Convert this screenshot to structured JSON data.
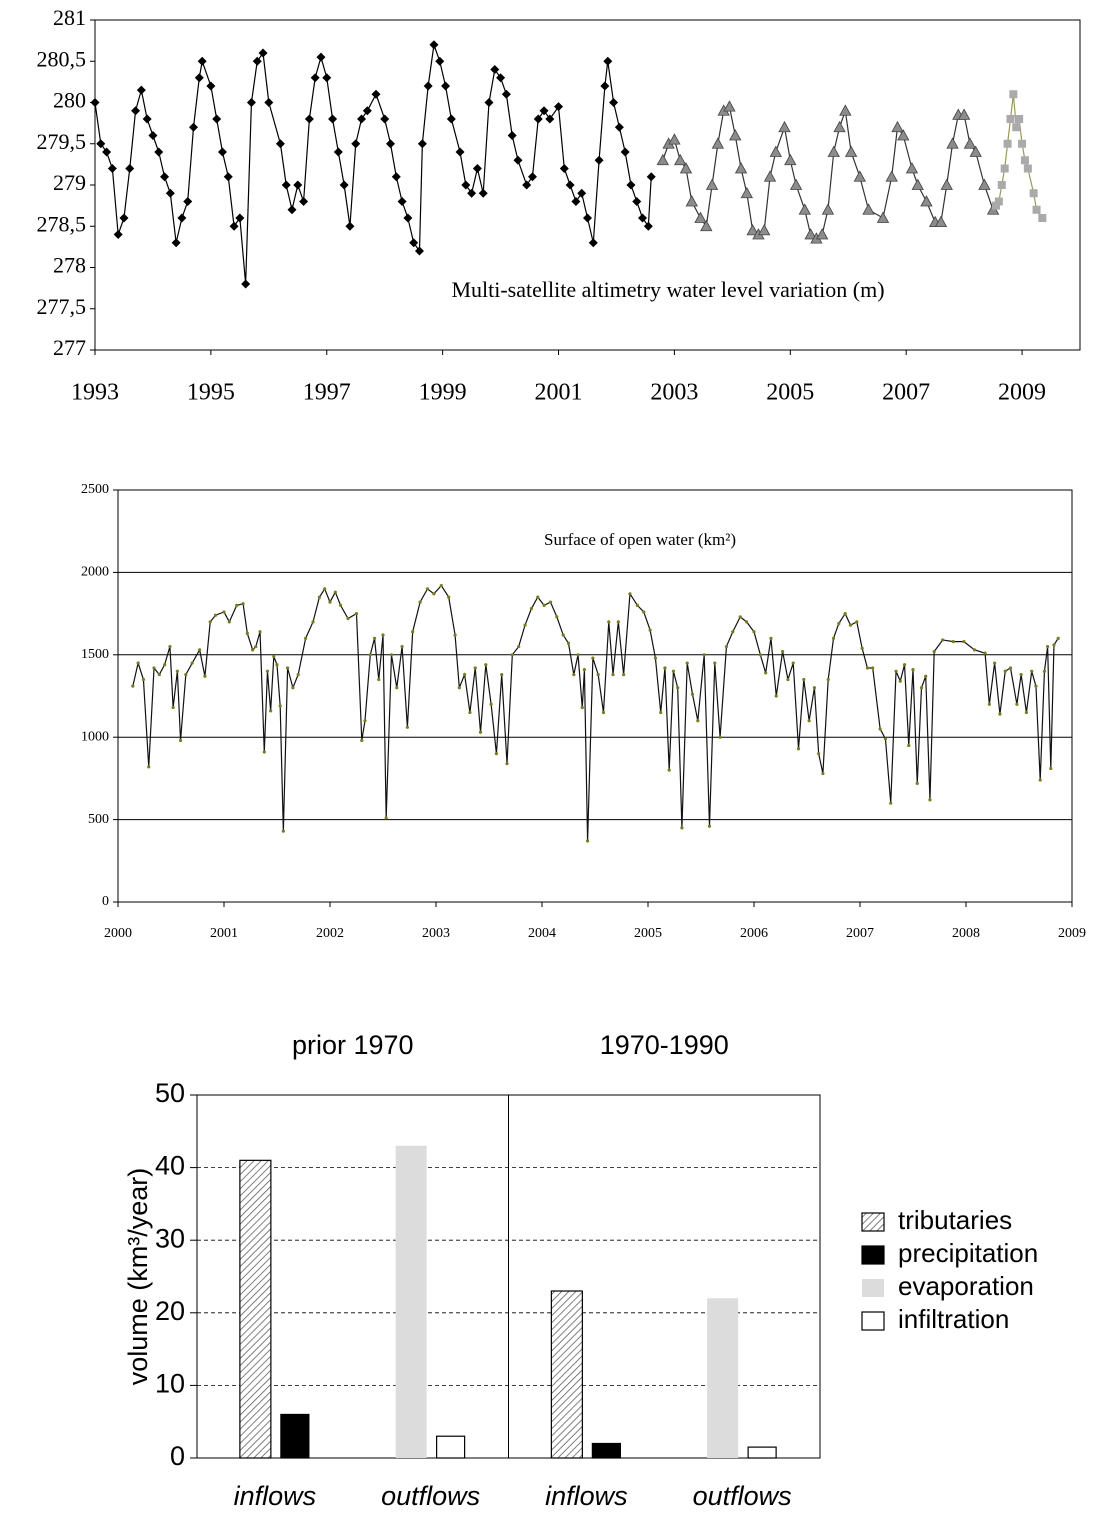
{
  "chart_data": [
    {
      "type": "line",
      "title": "Multi-satellite altimetry water level variation (m)",
      "xlim": [
        1993,
        2010
      ],
      "xticks": [
        1993,
        1995,
        1997,
        1999,
        2001,
        2003,
        2005,
        2007,
        2009
      ],
      "ylim": [
        277,
        281
      ],
      "yticks": [
        277,
        {
          "value": 277.5,
          "label": "277,5"
        },
        278,
        {
          "value": 278.5,
          "label": "278,5"
        },
        279,
        {
          "value": 279.5,
          "label": "279,5"
        },
        280,
        {
          "value": 280.5,
          "label": "280,5"
        },
        281
      ],
      "grid": false,
      "series": [
        {
          "color": "#000000",
          "line_color": "#000000",
          "marker": "diamond",
          "x": [
            1993.0,
            1993.1,
            1993.2,
            1993.3,
            1993.4,
            1993.5,
            1993.6,
            1993.7,
            1993.8,
            1993.9,
            1994.0,
            1994.1,
            1994.2,
            1994.3,
            1994.4,
            1994.5,
            1994.6,
            1994.7,
            1994.8,
            1994.85,
            1995.0,
            1995.1,
            1995.2,
            1995.3,
            1995.4,
            1995.5,
            1995.6,
            1995.7,
            1995.8,
            1995.9,
            1996.0,
            1996.2,
            1996.3,
            1996.4,
            1996.5,
            1996.6,
            1996.7,
            1996.8,
            1996.9,
            1997.0,
            1997.1,
            1997.2,
            1997.3,
            1997.4,
            1997.5,
            1997.6,
            1997.7,
            1997.85,
            1998.0,
            1998.1,
            1998.2,
            1998.3,
            1998.4,
            1998.5,
            1998.6,
            1998.65,
            1998.75,
            1998.85,
            1998.95,
            1999.05,
            1999.15,
            1999.3,
            1999.4,
            1999.5,
            1999.6,
            1999.7,
            1999.8,
            1999.9,
            2000.0,
            2000.1,
            2000.2,
            2000.3,
            2000.45,
            2000.55,
            2000.65,
            2000.75,
            2000.85,
            2001.0,
            2001.1,
            2001.2,
            2001.3,
            2001.4,
            2001.5,
            2001.6,
            2001.7,
            2001.8,
            2001.85,
            2001.95,
            2002.05,
            2002.15,
            2002.25,
            2002.35,
            2002.45,
            2002.55,
            2002.6
          ],
          "values": [
            280.0,
            279.5,
            279.4,
            279.2,
            278.4,
            278.6,
            279.2,
            279.9,
            280.15,
            279.8,
            279.6,
            279.4,
            279.1,
            278.9,
            278.3,
            278.6,
            278.8,
            279.7,
            280.3,
            280.5,
            280.2,
            279.8,
            279.4,
            279.1,
            278.5,
            278.6,
            277.8,
            280.0,
            280.5,
            280.6,
            280.0,
            279.5,
            279.0,
            278.7,
            279.0,
            278.8,
            279.8,
            280.3,
            280.55,
            280.3,
            279.8,
            279.4,
            279.0,
            278.5,
            279.5,
            279.8,
            279.9,
            280.1,
            279.8,
            279.5,
            279.1,
            278.8,
            278.6,
            278.3,
            278.2,
            279.5,
            280.2,
            280.7,
            280.5,
            280.2,
            279.8,
            279.4,
            279.0,
            278.9,
            279.2,
            278.9,
            280.0,
            280.4,
            280.3,
            280.1,
            279.6,
            279.3,
            279.0,
            279.1,
            279.8,
            279.9,
            279.8,
            279.95,
            279.2,
            279.0,
            278.8,
            278.9,
            278.6,
            278.3,
            279.3,
            280.2,
            280.5,
            280.0,
            279.7,
            279.4,
            279.0,
            278.8,
            278.6,
            278.5,
            279.1
          ]
        },
        {
          "color": "#8c8c8c",
          "line_color": "#333333",
          "marker": "triangle",
          "x": [
            2002.8,
            2002.9,
            2003.0,
            2003.1,
            2003.2,
            2003.3,
            2003.45,
            2003.55,
            2003.65,
            2003.75,
            2003.85,
            2003.95,
            2004.05,
            2004.15,
            2004.25,
            2004.35,
            2004.45,
            2004.55,
            2004.65,
            2004.75,
            2004.9,
            2005.0,
            2005.1,
            2005.25,
            2005.35,
            2005.45,
            2005.55,
            2005.65,
            2005.75,
            2005.85,
            2005.95,
            2006.05,
            2006.2,
            2006.35,
            2006.6,
            2006.75,
            2006.85,
            2006.95,
            2007.1,
            2007.2,
            2007.35,
            2007.5,
            2007.6,
            2007.7,
            2007.8,
            2007.9,
            2008.0,
            2008.1,
            2008.2,
            2008.35,
            2008.5
          ],
          "values": [
            279.3,
            279.5,
            279.55,
            279.3,
            279.2,
            278.8,
            278.6,
            278.5,
            279.0,
            279.5,
            279.9,
            279.95,
            279.6,
            279.2,
            278.9,
            278.45,
            278.4,
            278.45,
            279.1,
            279.4,
            279.7,
            279.3,
            279.0,
            278.7,
            278.4,
            278.35,
            278.4,
            278.7,
            279.4,
            279.7,
            279.9,
            279.4,
            279.1,
            278.7,
            278.6,
            279.1,
            279.7,
            279.6,
            279.2,
            279.0,
            278.8,
            278.55,
            278.55,
            279.0,
            279.5,
            279.85,
            279.85,
            279.5,
            279.4,
            279.0,
            278.7
          ]
        },
        {
          "color": "#aaaaaa",
          "line_color": "#9a9a55",
          "marker": "square",
          "x": [
            2008.55,
            2008.6,
            2008.65,
            2008.7,
            2008.75,
            2008.8,
            2008.85,
            2008.9,
            2008.95,
            2009.0,
            2009.05,
            2009.1,
            2009.2,
            2009.25,
            2009.35
          ],
          "values": [
            278.75,
            278.8,
            279.0,
            279.2,
            279.5,
            279.8,
            280.1,
            279.7,
            279.8,
            279.5,
            279.3,
            279.2,
            278.9,
            278.7,
            278.6
          ]
        }
      ]
    },
    {
      "type": "line",
      "title": "Surface of open water (km²)",
      "xlim": [
        2000,
        2009
      ],
      "xticks": [
        2000,
        2001,
        2002,
        2003,
        2004,
        2005,
        2006,
        2007,
        2008,
        2009
      ],
      "ylim": [
        0,
        2500
      ],
      "yticks": [
        0,
        500,
        1000,
        1500,
        2000,
        2500
      ],
      "grid": true,
      "series": [
        {
          "color": "#7a7a20",
          "line_color": "#111111",
          "marker": "dot",
          "x": [
            2000.14,
            2000.19,
            2000.24,
            2000.29,
            2000.34,
            2000.39,
            2000.44,
            2000.49,
            2000.52,
            2000.56,
            2000.59,
            2000.64,
            2000.7,
            2000.77,
            2000.82,
            2000.87,
            2000.92,
            2001.0,
            2001.05,
            2001.12,
            2001.18,
            2001.22,
            2001.27,
            2001.3,
            2001.34,
            2001.38,
            2001.41,
            2001.44,
            2001.47,
            2001.5,
            2001.53,
            2001.56,
            2001.6,
            2001.65,
            2001.7,
            2001.77,
            2001.84,
            2001.9,
            2001.95,
            2002.0,
            2002.05,
            2002.1,
            2002.17,
            2002.25,
            2002.3,
            2002.33,
            2002.38,
            2002.42,
            2002.46,
            2002.5,
            2002.53,
            2002.58,
            2002.63,
            2002.68,
            2002.73,
            2002.78,
            2002.85,
            2002.92,
            2002.98,
            2003.05,
            2003.12,
            2003.18,
            2003.22,
            2003.27,
            2003.32,
            2003.37,
            2003.42,
            2003.47,
            2003.52,
            2003.57,
            2003.62,
            2003.67,
            2003.72,
            2003.78,
            2003.84,
            2003.9,
            2003.96,
            2004.02,
            2004.08,
            2004.14,
            2004.2,
            2004.25,
            2004.3,
            2004.34,
            2004.38,
            2004.4,
            2004.43,
            2004.48,
            2004.53,
            2004.58,
            2004.63,
            2004.67,
            2004.72,
            2004.77,
            2004.83,
            2004.9,
            2004.96,
            2005.02,
            2005.07,
            2005.12,
            2005.16,
            2005.2,
            2005.24,
            2005.28,
            2005.32,
            2005.37,
            2005.42,
            2005.47,
            2005.53,
            2005.58,
            2005.63,
            2005.68,
            2005.74,
            2005.8,
            2005.87,
            2005.93,
            2006.0,
            2006.06,
            2006.11,
            2006.16,
            2006.21,
            2006.27,
            2006.32,
            2006.37,
            2006.42,
            2006.47,
            2006.52,
            2006.57,
            2006.61,
            2006.65,
            2006.7,
            2006.75,
            2006.8,
            2006.86,
            2006.91,
            2006.97,
            2007.02,
            2007.07,
            2007.12,
            2007.19,
            2007.24,
            2007.29,
            2007.34,
            2007.38,
            2007.42,
            2007.46,
            2007.5,
            2007.54,
            2007.58,
            2007.62,
            2007.66,
            2007.7,
            2007.78,
            2007.88,
            2007.98,
            2008.08,
            2008.18,
            2008.22,
            2008.27,
            2008.32,
            2008.37,
            2008.42,
            2008.48,
            2008.52,
            2008.57,
            2008.62,
            2008.66,
            2008.7,
            2008.74,
            2008.77,
            2008.8,
            2008.83,
            2008.87
          ],
          "values": [
            1310,
            1450,
            1350,
            820,
            1420,
            1380,
            1440,
            1550,
            1180,
            1400,
            980,
            1380,
            1450,
            1530,
            1370,
            1700,
            1740,
            1760,
            1700,
            1800,
            1810,
            1630,
            1530,
            1550,
            1640,
            910,
            1400,
            1160,
            1490,
            1440,
            1190,
            430,
            1420,
            1300,
            1380,
            1600,
            1700,
            1850,
            1900,
            1820,
            1880,
            1800,
            1720,
            1750,
            980,
            1100,
            1500,
            1600,
            1350,
            1620,
            510,
            1500,
            1300,
            1550,
            1060,
            1640,
            1820,
            1900,
            1870,
            1920,
            1850,
            1620,
            1300,
            1380,
            1150,
            1420,
            1030,
            1440,
            1200,
            900,
            1380,
            840,
            1500,
            1550,
            1680,
            1780,
            1850,
            1800,
            1820,
            1730,
            1620,
            1570,
            1380,
            1500,
            1180,
            1410,
            370,
            1480,
            1380,
            1150,
            1700,
            1380,
            1700,
            1380,
            1870,
            1800,
            1760,
            1650,
            1480,
            1150,
            1420,
            800,
            1400,
            1300,
            450,
            1450,
            1260,
            1100,
            1500,
            460,
            1450,
            1000,
            1550,
            1640,
            1730,
            1700,
            1640,
            1500,
            1390,
            1600,
            1250,
            1520,
            1350,
            1450,
            930,
            1350,
            1100,
            1300,
            900,
            780,
            1350,
            1600,
            1690,
            1750,
            1680,
            1700,
            1540,
            1420,
            1420,
            1050,
            990,
            600,
            1400,
            1340,
            1440,
            950,
            1410,
            720,
            1300,
            1370,
            620,
            1520,
            1590,
            1580,
            1580,
            1530,
            1510,
            1200,
            1450,
            1140,
            1400,
            1420,
            1200,
            1380,
            1150,
            1400,
            1310,
            740,
            1400,
            1550,
            810,
            1560,
            1600
          ]
        }
      ]
    },
    {
      "type": "bar",
      "ylabel": "volume (km³/year)",
      "panels": [
        "prior 1970",
        "1970-1990"
      ],
      "categories": [
        "inflows",
        "outflows",
        "inflows",
        "outflows"
      ],
      "ylim": [
        0,
        50
      ],
      "yticks": [
        0,
        10,
        20,
        30,
        40,
        50
      ],
      "grid": true,
      "series": [
        {
          "name": "tributaries",
          "color": "#ffffff",
          "edgecolor": "#000000",
          "hatch": true,
          "values": [
            41,
            null,
            23,
            null
          ]
        },
        {
          "name": "precipitation",
          "color": "#000000",
          "edgecolor": "#000000",
          "values": [
            6,
            null,
            2,
            null
          ]
        },
        {
          "name": "evaporation",
          "color": "#dcdcdc",
          "values": [
            null,
            43,
            null,
            22
          ]
        },
        {
          "name": "infiltration",
          "color": "#ffffff",
          "edgecolor": "#000000",
          "values": [
            null,
            3,
            null,
            1.5
          ]
        }
      ]
    }
  ]
}
